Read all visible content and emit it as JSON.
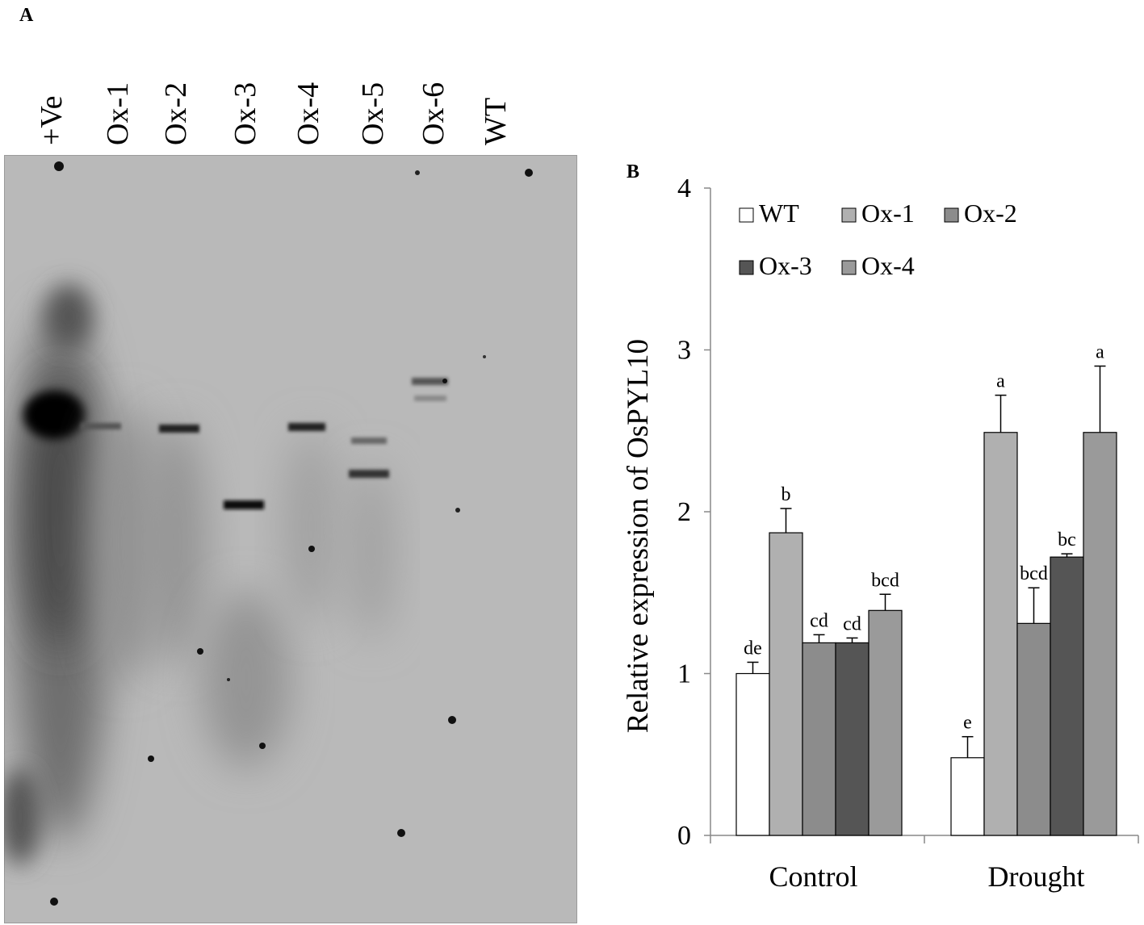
{
  "panel_a": {
    "letter": "A",
    "lanes": [
      "+Ve",
      "Ox-1",
      "Ox-2",
      "Ox-3",
      "Ox-4",
      "Ox-5",
      "Ox-6",
      "WT"
    ]
  },
  "panel_b": {
    "letter": "B"
  },
  "chart_data": {
    "type": "bar",
    "title": "",
    "xlabel": "",
    "ylabel": "Relative expression of OsPYL10",
    "categories": [
      "Control",
      "Drought"
    ],
    "ylim": [
      0,
      4
    ],
    "yticks": [
      0,
      1,
      2,
      3,
      4
    ],
    "grid": false,
    "legend_position": "top-left",
    "series": [
      {
        "name": "WT",
        "color": "#ffffff",
        "values": [
          1.0,
          0.48
        ],
        "errors": [
          0.07,
          0.13
        ],
        "labels": [
          "de",
          "e"
        ]
      },
      {
        "name": "Ox-1",
        "color": "#b0b0b0",
        "values": [
          1.87,
          2.49
        ],
        "errors": [
          0.15,
          0.23
        ],
        "labels": [
          "b",
          "a"
        ]
      },
      {
        "name": "Ox-2",
        "color": "#8c8c8c",
        "values": [
          1.19,
          1.31
        ],
        "errors": [
          0.05,
          0.22
        ],
        "labels": [
          "cd",
          "bcd"
        ]
      },
      {
        "name": "Ox-3",
        "color": "#555555",
        "values": [
          1.19,
          1.72
        ],
        "errors": [
          0.03,
          0.02
        ],
        "labels": [
          "cd",
          "bc"
        ]
      },
      {
        "name": "Ox-4",
        "color": "#9a9a9a",
        "values": [
          1.39,
          2.49
        ],
        "errors": [
          0.1,
          0.41
        ],
        "labels": [
          "bcd",
          "a"
        ]
      }
    ]
  }
}
